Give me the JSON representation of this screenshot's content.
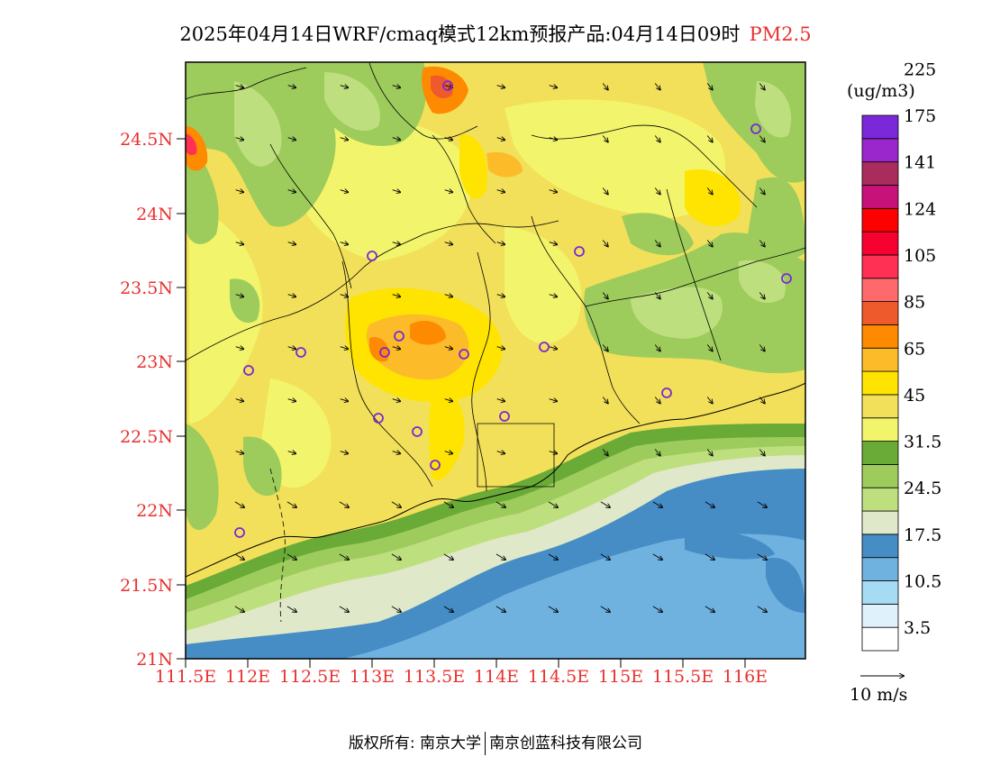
{
  "title": {
    "main": "2025年04月14日WRF/cmaq模式12km预报产品:04月14日09时",
    "pollutant": "PM2.5"
  },
  "lat_labels": [
    "24.5N",
    "24N",
    "23.5N",
    "23N",
    "22.5N",
    "22N",
    "21.5N",
    "21N"
  ],
  "lon_labels": [
    "111.5E",
    "112E",
    "112.5E",
    "113E",
    "113.5E",
    "114E",
    "114.5E",
    "115E",
    "115.5E",
    "116E"
  ],
  "colorbar": {
    "unit": "(ug/m3)",
    "colors": [
      "#ffffff",
      "#dff1fb",
      "#a6dcf3",
      "#6fb1df",
      "#468cc5",
      "#dfe8c8",
      "#bedf7e",
      "#9dcc5c",
      "#6aaa37",
      "#f2f56b",
      "#f2e05a",
      "#fee400",
      "#fcbc2a",
      "#fd8a00",
      "#ef5a2c",
      "#fe6a6b",
      "#ff3054",
      "#f60230",
      "#fe0000",
      "#c7127a",
      "#a82d5c",
      "#9a27cb",
      "#7b28d8"
    ],
    "labels": [
      "3.5",
      "10.5",
      "17.5",
      "24.5",
      "31.5",
      "45",
      "65",
      "85",
      "105",
      "124",
      "141",
      "175",
      "225"
    ]
  },
  "wind": {
    "reference_label": "10 m/s"
  },
  "copyright": {
    "left": "版权所有: 南京大学",
    "right": "南京创蓝科技有限公司"
  }
}
